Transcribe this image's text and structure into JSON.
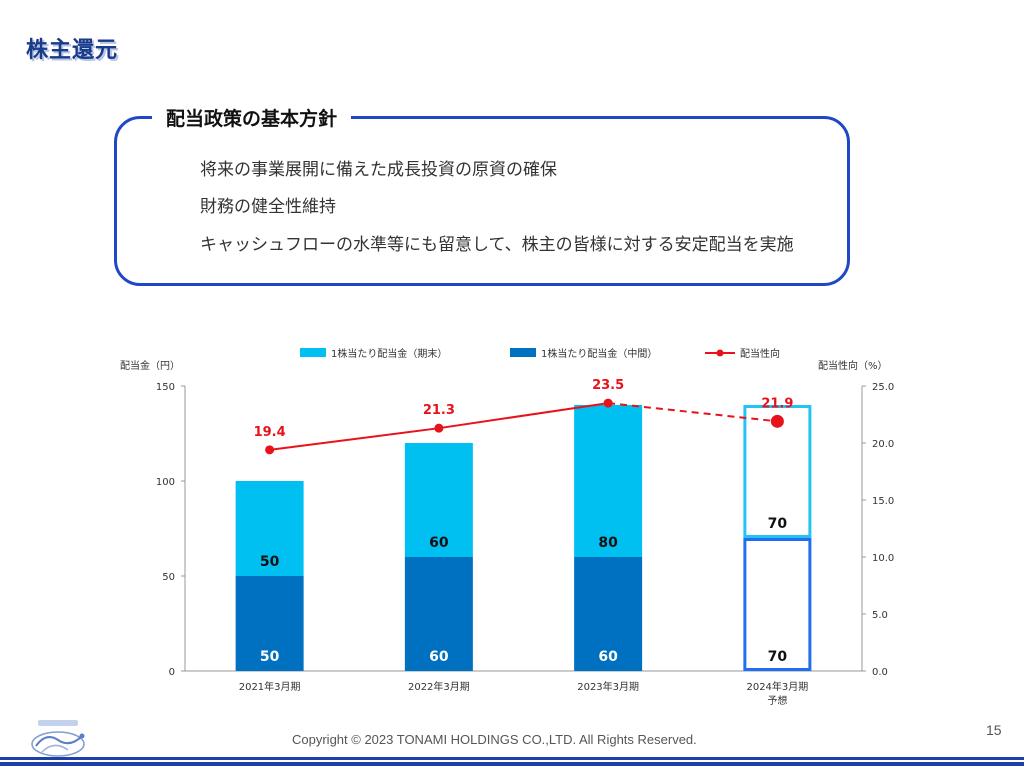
{
  "page": {
    "title": "株主還元",
    "page_number": "15",
    "copyright": "Copyright © 2023 TONAMI HOLDINGS CO.,LTD. All Rights Reserved."
  },
  "policy": {
    "heading": "配当政策の基本方針",
    "items": [
      "将来の事業展開に備えた成長投資の原資の確保",
      "財務の健全性維持",
      "キャッシュフローの水準等にも留意して、株主の皆様に対する安定配当を実施"
    ]
  },
  "chart_data": {
    "type": "bar",
    "left_axis_label": "配当金（円）",
    "right_axis_label": "配当性向（%）",
    "categories": [
      "2021年3月期",
      "2022年3月期",
      "2023年3月期",
      "2024年3月期"
    ],
    "category_notes": [
      "",
      "",
      "",
      "予想"
    ],
    "y_left_ticks": [
      "0",
      "50",
      "100",
      "150"
    ],
    "ylim_left": [
      0,
      150
    ],
    "y_right_ticks": [
      "0.0",
      "5.0",
      "10.0",
      "15.0",
      "20.0",
      "25.0"
    ],
    "ylim_right": [
      0,
      25
    ],
    "series": [
      {
        "name": "1株当たり配当金（中間）",
        "kind": "bar",
        "color": "#0070c0",
        "values": [
          50,
          60,
          60,
          70
        ],
        "labels": [
          "50",
          "60",
          "60",
          "70"
        ]
      },
      {
        "name": "1株当たり配当金（期末）",
        "kind": "bar",
        "color": "#00c0f2",
        "values": [
          50,
          60,
          80,
          70
        ],
        "labels": [
          "50",
          "60",
          "80",
          "70"
        ]
      },
      {
        "name": "配当性向",
        "kind": "line",
        "color": "#e8121b",
        "axis": "right",
        "values": [
          19.4,
          21.3,
          23.5,
          21.9
        ],
        "labels": [
          "19.4",
          "21.3",
          "23.5",
          "21.9"
        ]
      }
    ],
    "legend_order": [
      "1株当たり配当金（期末）",
      "1株当たり配当金（中間）",
      "配当性向"
    ],
    "forecast_index": 3,
    "forecast_colors": {
      "interim_border": "#1f6ff0",
      "year_end_border": "#24c3f3"
    },
    "legend_placement": "top",
    "grid": false
  }
}
